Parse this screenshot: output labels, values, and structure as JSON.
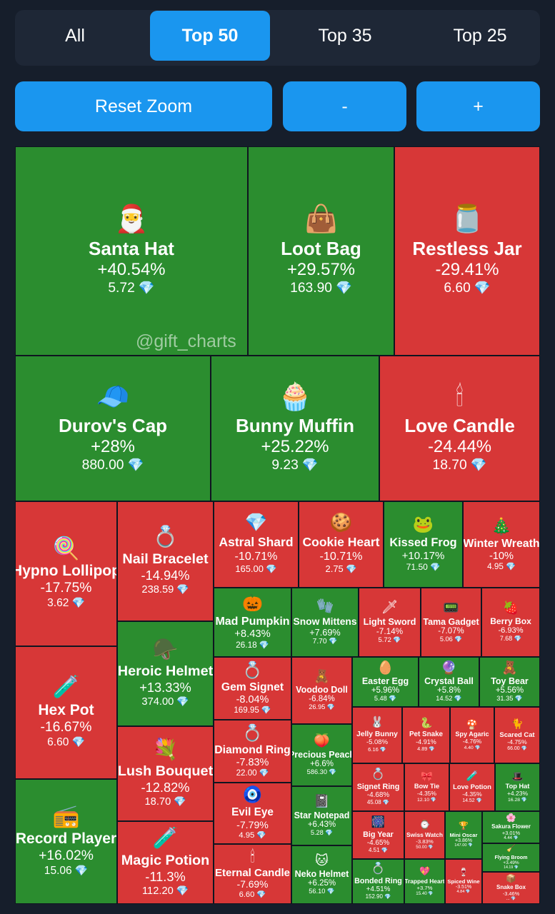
{
  "tabs": [
    "All",
    "Top 50",
    "Top 35",
    "Top 25"
  ],
  "active_tab": "Top 50",
  "controls": {
    "reset_label": "Reset Zoom",
    "zoom_out_label": "-",
    "zoom_in_label": "+"
  },
  "watermark": "@gift_charts",
  "colors": {
    "up": "#2b8d2f",
    "down": "#d73737",
    "accent": "#1a96ef",
    "background": "#161e2b"
  },
  "currency_icon": "diamond-icon",
  "gifts": [
    {
      "name": "Santa Hat",
      "change": "+40.54%",
      "price": "5.72",
      "icon": "🎅"
    },
    {
      "name": "Loot Bag",
      "change": "+29.57%",
      "price": "163.90",
      "icon": "👜"
    },
    {
      "name": "Restless Jar",
      "change": "-29.41%",
      "price": "6.60",
      "icon": "🫙"
    },
    {
      "name": "Durov's Cap",
      "change": "+28%",
      "price": "880.00",
      "icon": "🧢"
    },
    {
      "name": "Bunny Muffin",
      "change": "+25.22%",
      "price": "9.23",
      "icon": "🧁"
    },
    {
      "name": "Love Candle",
      "change": "-24.44%",
      "price": "18.70",
      "icon": "🕯"
    },
    {
      "name": "Hypno Lollipop",
      "change": "-17.75%",
      "price": "3.62",
      "icon": "🍭"
    },
    {
      "name": "Nail Bracelet",
      "change": "-14.94%",
      "price": "238.59",
      "icon": "💍"
    },
    {
      "name": "Astral Shard",
      "change": "-10.71%",
      "price": "165.00",
      "icon": "💎"
    },
    {
      "name": "Cookie Heart",
      "change": "-10.71%",
      "price": "2.75",
      "icon": "🍪"
    },
    {
      "name": "Kissed Frog",
      "change": "+10.17%",
      "price": "71.50",
      "icon": "🐸"
    },
    {
      "name": "Winter Wreath",
      "change": "-10%",
      "price": "4.95",
      "icon": "🎄"
    },
    {
      "name": "Mad Pumpkin",
      "change": "+8.43%",
      "price": "26.18",
      "icon": "🎃"
    },
    {
      "name": "Snow Mittens",
      "change": "+7.69%",
      "price": "7.70",
      "icon": "🧤"
    },
    {
      "name": "Light Sword",
      "change": "-7.14%",
      "price": "5.72",
      "icon": "🗡"
    },
    {
      "name": "Tama Gadget",
      "change": "-7.07%",
      "price": "5.06",
      "icon": "📟"
    },
    {
      "name": "Berry Box",
      "change": "-6.93%",
      "price": "7.68",
      "icon": "🍓"
    },
    {
      "name": "Heroic Helmet",
      "change": "+13.33%",
      "price": "374.00",
      "icon": "🪖"
    },
    {
      "name": "Gem Signet",
      "change": "-8.04%",
      "price": "169.95",
      "icon": "💍"
    },
    {
      "name": "Voodoo Doll",
      "change": "-6.84%",
      "price": "26.95",
      "icon": "🧸"
    },
    {
      "name": "Easter Egg",
      "change": "+5.96%",
      "price": "5.48",
      "icon": "🥚"
    },
    {
      "name": "Crystal Ball",
      "change": "+5.8%",
      "price": "14.52",
      "icon": "🔮"
    },
    {
      "name": "Toy Bear",
      "change": "+5.56%",
      "price": "31.35",
      "icon": "🧸"
    },
    {
      "name": "Hex Pot",
      "change": "-16.67%",
      "price": "6.60",
      "icon": "🧪"
    },
    {
      "name": "Jelly Bunny",
      "change": "-5.08%",
      "price": "6.16",
      "icon": "🐰"
    },
    {
      "name": "Pet Snake",
      "change": "-4.91%",
      "price": "4.89",
      "icon": "🐍"
    },
    {
      "name": "Spy Agaric",
      "change": "-4.76%",
      "price": "4.40",
      "icon": "🍄"
    },
    {
      "name": "Scared Cat",
      "change": "-4.75%",
      "price": "66.00",
      "icon": "🐈"
    },
    {
      "name": "Diamond Ring",
      "change": "-7.83%",
      "price": "22.00",
      "icon": "💍"
    },
    {
      "name": "Precious Peach",
      "change": "+6.6%",
      "price": "586.30",
      "icon": "🍑"
    },
    {
      "name": "Lush Bouquet",
      "change": "-12.82%",
      "price": "18.70",
      "icon": "💐"
    },
    {
      "name": "Signet Ring",
      "change": "-4.68%",
      "price": "45.08",
      "icon": "💍"
    },
    {
      "name": "Bow Tie",
      "change": "-4.35%",
      "price": "12.10",
      "icon": "🎀"
    },
    {
      "name": "Love Potion",
      "change": "-4.35%",
      "price": "14.52",
      "icon": "🧪"
    },
    {
      "name": "Top Hat",
      "change": "+4.23%",
      "price": "16.28",
      "icon": "🎩"
    },
    {
      "name": "Evil Eye",
      "change": "-7.79%",
      "price": "4.95",
      "icon": "🧿"
    },
    {
      "name": "Star Notepad",
      "change": "+6.43%",
      "price": "5.28",
      "icon": "📓"
    },
    {
      "name": "Big Year",
      "change": "-4.65%",
      "price": "4.51",
      "icon": "🎆"
    },
    {
      "name": "Swiss Watch",
      "change": "-3.83%",
      "price": "50.00",
      "icon": "⌚"
    },
    {
      "name": "Mini Oscar",
      "change": "+3.86%",
      "price": "147.00",
      "icon": "🏆"
    },
    {
      "name": "Sakura Flower",
      "change": "+3.01%",
      "price": "4.44",
      "icon": "🌸"
    },
    {
      "name": "Record Player",
      "change": "+16.02%",
      "price": "15.06",
      "icon": "📻"
    },
    {
      "name": "Magic Potion",
      "change": "-11.3%",
      "price": "112.20",
      "icon": "🧪"
    },
    {
      "name": "Eternal Candle",
      "change": "-7.69%",
      "price": "6.60",
      "icon": "🕯"
    },
    {
      "name": "Neko Helmet",
      "change": "+6.25%",
      "price": "56.10",
      "icon": "🐱"
    },
    {
      "name": "Bonded Ring",
      "change": "+4.51%",
      "price": "152.90",
      "icon": "💍"
    },
    {
      "name": "Trapped Heart",
      "change": "+3.7%",
      "price": "15.40",
      "icon": "💖"
    },
    {
      "name": "Spiced Wine",
      "change": "-3.51%",
      "price": "4.84",
      "icon": "🍷"
    },
    {
      "name": "Flying Broom",
      "change": "+3.49%",
      "price": "14.19",
      "icon": "🧹"
    },
    {
      "name": "Snake Box",
      "change": "-3.46%",
      "price": "...",
      "icon": "📦"
    }
  ]
}
